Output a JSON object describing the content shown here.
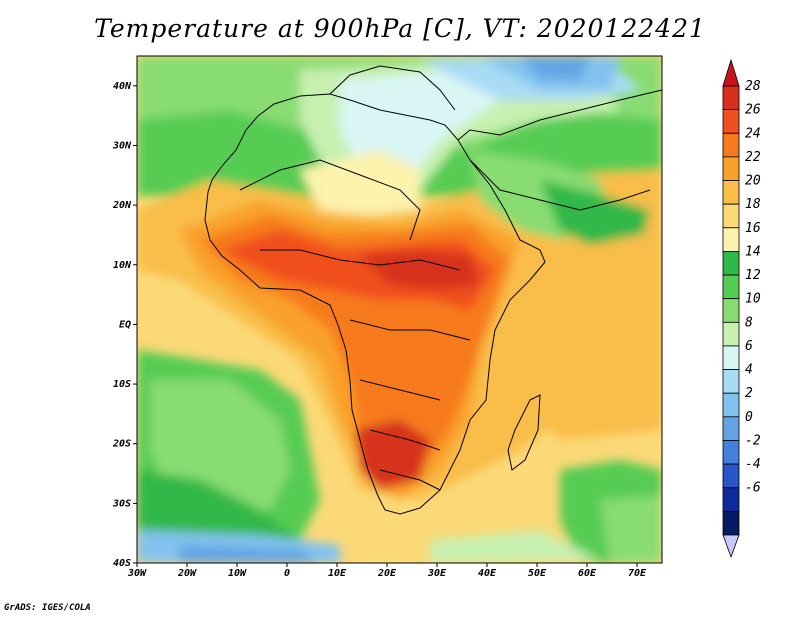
{
  "title": "Temperature at 900hPa [C], VT: 2020122421",
  "credit": "GrADS: IGES/COLA",
  "map": {
    "variable": "Temperature at 900hPa",
    "unit": "C",
    "valid_time": "2020122421",
    "lon_range": [
      -30,
      75
    ],
    "lat_range": [
      -40,
      45
    ],
    "x_ticks": [
      "30W",
      "20W",
      "10W",
      "0",
      "10E",
      "20E",
      "30E",
      "40E",
      "50E",
      "60E",
      "70E"
    ],
    "y_ticks": [
      "40N",
      "30N",
      "20N",
      "10N",
      "EQ",
      "10S",
      "20S",
      "30S",
      "40S"
    ]
  },
  "colorbar": {
    "levels": [
      "28",
      "26",
      "24",
      "22",
      "20",
      "18",
      "16",
      "14",
      "12",
      "10",
      "8",
      "6",
      "4",
      "2",
      "0",
      "-2",
      "-4",
      "-6"
    ],
    "colors": [
      "#d7301f",
      "#f0501f",
      "#f77a1d",
      "#f9a12c",
      "#f9bd48",
      "#fbd977",
      "#fdf3ad",
      "#30b84a",
      "#56cc52",
      "#88dc72",
      "#c8f0b0",
      "#d9f6f4",
      "#a8dcf4",
      "#82c2ee",
      "#62a4e4",
      "#4280dc",
      "#2856c8",
      "#0c2b9c",
      "#071a64"
    ],
    "top_arrow_color": "#c8141e",
    "bottom_arrow_color": "#c8c8ff"
  }
}
